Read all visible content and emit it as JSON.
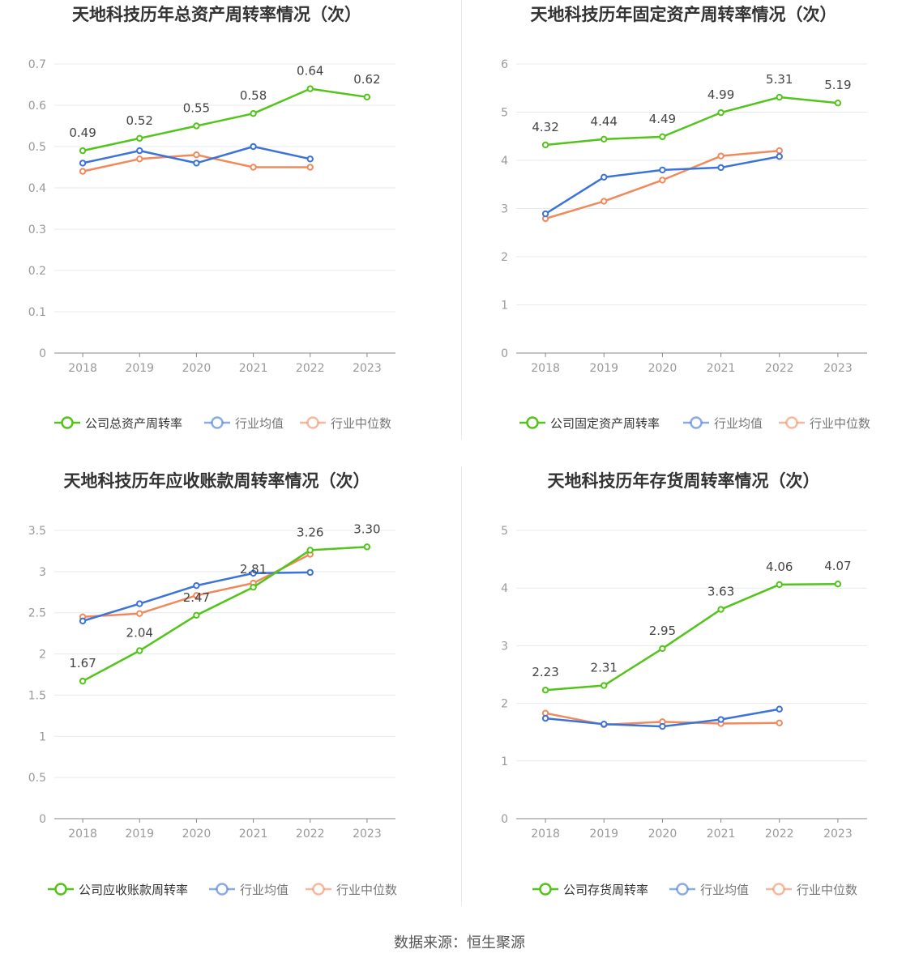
{
  "colors": {
    "company": "#52c41a",
    "avg": "#3b73d9",
    "median": "#f08a5d",
    "grid": "#e6e9f0",
    "axis": "#888888",
    "text": "#999999",
    "label": "#444444",
    "title": "#333333"
  },
  "legend_labels": {
    "avg": "行业均值",
    "median": "行业中位数"
  },
  "source": "数据来源：恒生聚源",
  "chart_data": [
    {
      "type": "line",
      "title": "天地科技历年总资产周转率情况（次）",
      "categories": [
        "2018",
        "2019",
        "2020",
        "2021",
        "2022",
        "2023"
      ],
      "ylim": [
        0,
        0.7
      ],
      "yticks": [
        "0",
        "0.1",
        "0.2",
        "0.3",
        "0.4",
        "0.5",
        "0.6",
        "0.7"
      ],
      "grid": true,
      "legend": "bottom",
      "series": [
        {
          "name": "公司总资产周转率",
          "role": "company",
          "values": [
            0.49,
            0.52,
            0.55,
            0.58,
            0.64,
            0.62
          ],
          "labels": [
            "0.49",
            "0.52",
            "0.55",
            "0.58",
            "0.64",
            "0.62"
          ]
        },
        {
          "name": "行业均值",
          "role": "avg",
          "values": [
            0.46,
            0.49,
            0.46,
            0.5,
            0.47,
            null
          ]
        },
        {
          "name": "行业中位数",
          "role": "median",
          "values": [
            0.44,
            0.47,
            0.48,
            0.45,
            0.45,
            null
          ]
        }
      ]
    },
    {
      "type": "line",
      "title": "天地科技历年固定资产周转率情况（次）",
      "categories": [
        "2018",
        "2019",
        "2020",
        "2021",
        "2022",
        "2023"
      ],
      "ylim": [
        0,
        6
      ],
      "yticks": [
        "0",
        "1",
        "2",
        "3",
        "4",
        "5",
        "6"
      ],
      "grid": true,
      "legend": "bottom",
      "series": [
        {
          "name": "公司固定资产周转率",
          "role": "company",
          "values": [
            4.32,
            4.44,
            4.49,
            4.99,
            5.31,
            5.19
          ],
          "labels": [
            "4.32",
            "4.44",
            "4.49",
            "4.99",
            "5.31",
            "5.19"
          ]
        },
        {
          "name": "行业均值",
          "role": "avg",
          "values": [
            2.89,
            3.65,
            3.8,
            3.85,
            4.08,
            null
          ]
        },
        {
          "name": "行业中位数",
          "role": "median",
          "values": [
            2.79,
            3.15,
            3.59,
            4.09,
            4.2,
            null
          ]
        }
      ]
    },
    {
      "type": "line",
      "title": "天地科技历年应收账款周转率情况（次）",
      "categories": [
        "2018",
        "2019",
        "2020",
        "2021",
        "2022",
        "2023"
      ],
      "ylim": [
        0,
        3.5
      ],
      "yticks": [
        "0",
        "0.5",
        "1",
        "1.5",
        "2",
        "2.5",
        "3",
        "3.5"
      ],
      "grid": true,
      "legend": "bottom",
      "series": [
        {
          "name": "公司应收账款周转率",
          "role": "company",
          "values": [
            1.67,
            2.04,
            2.47,
            2.81,
            3.26,
            3.3
          ],
          "labels": [
            "1.67",
            "2.04",
            "2.47",
            "2.81",
            "3.26",
            "3.30"
          ]
        },
        {
          "name": "行业均值",
          "role": "avg",
          "values": [
            2.4,
            2.61,
            2.83,
            2.98,
            2.99,
            null
          ]
        },
        {
          "name": "行业中位数",
          "role": "median",
          "values": [
            2.45,
            2.49,
            2.71,
            2.86,
            3.21,
            null
          ]
        }
      ]
    },
    {
      "type": "line",
      "title": "天地科技历年存货周转率情况（次）",
      "categories": [
        "2018",
        "2019",
        "2020",
        "2021",
        "2022",
        "2023"
      ],
      "ylim": [
        0,
        5
      ],
      "yticks": [
        "0",
        "1",
        "2",
        "3",
        "4",
        "5"
      ],
      "grid": true,
      "legend": "bottom",
      "series": [
        {
          "name": "公司存货周转率",
          "role": "company",
          "values": [
            2.23,
            2.31,
            2.95,
            3.63,
            4.06,
            4.07
          ],
          "labels": [
            "2.23",
            "2.31",
            "2.95",
            "3.63",
            "4.06",
            "4.07"
          ]
        },
        {
          "name": "行业均值",
          "role": "avg",
          "values": [
            1.74,
            1.64,
            1.6,
            1.72,
            1.9,
            null
          ]
        },
        {
          "name": "行业中位数",
          "role": "median",
          "values": [
            1.83,
            1.63,
            1.68,
            1.65,
            1.66,
            null
          ]
        }
      ]
    }
  ]
}
